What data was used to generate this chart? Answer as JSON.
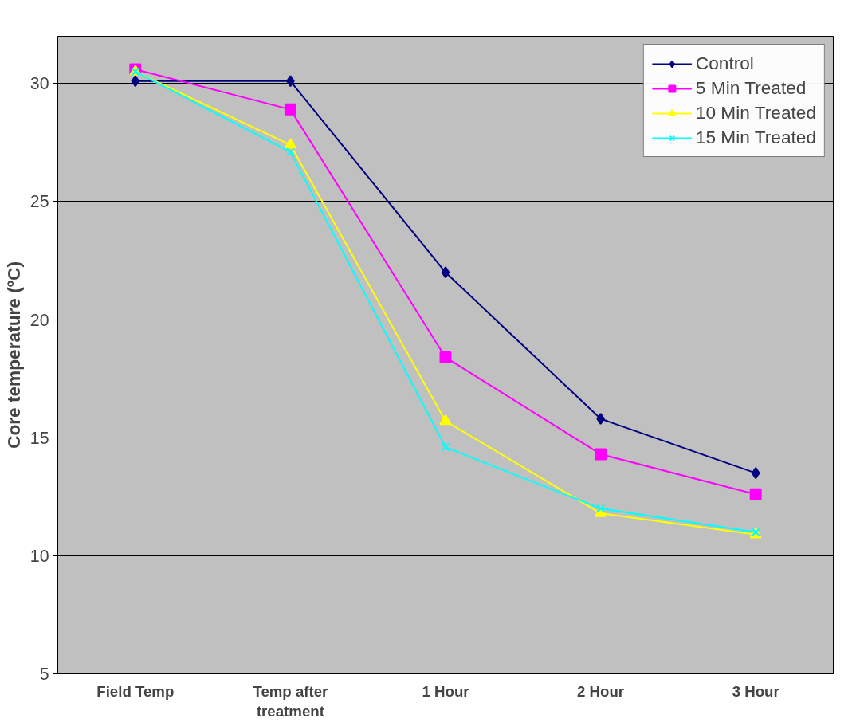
{
  "chart_data": {
    "type": "line",
    "ylabel": "Core temperature (ºC)",
    "categories": [
      "Field Temp",
      "Temp after treatment",
      "1 Hour",
      "2 Hour",
      "3 Hour"
    ],
    "series": [
      {
        "name": "Control",
        "color": "#000080",
        "marker": "diamond",
        "values": [
          30.1,
          30.1,
          22.0,
          15.8,
          13.5
        ]
      },
      {
        "name": "5 Min Treated",
        "color": "#ff00ff",
        "marker": "square",
        "values": [
          30.6,
          28.9,
          18.4,
          14.3,
          12.6
        ]
      },
      {
        "name": "10 Min Treated",
        "color": "#ffff00",
        "marker": "triangle",
        "values": [
          30.5,
          27.4,
          15.7,
          11.8,
          10.9
        ]
      },
      {
        "name": "15 Min Treated",
        "color": "#00ffff",
        "marker": "cross",
        "values": [
          30.5,
          27.1,
          14.6,
          12.0,
          11.0
        ]
      }
    ],
    "ylim": [
      5,
      32
    ],
    "yticks": [
      5,
      10,
      15,
      20,
      25,
      30
    ],
    "grid": "y",
    "legend": "top right"
  }
}
